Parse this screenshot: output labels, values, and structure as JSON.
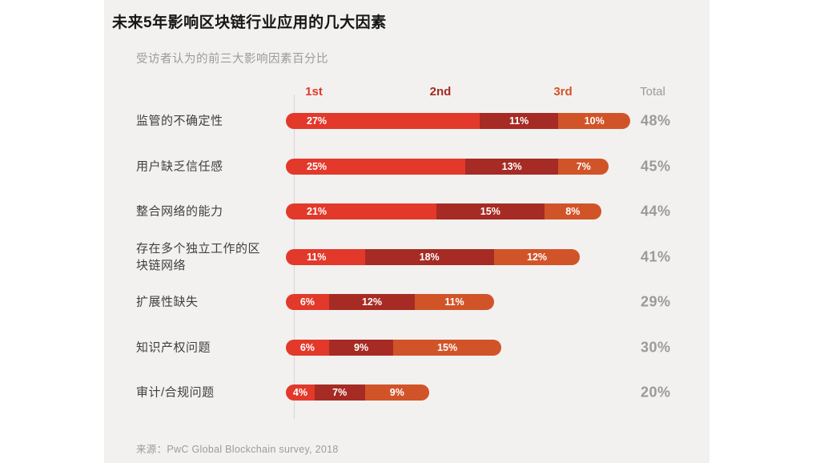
{
  "title": "未来5年影响区块链行业应用的几大因素",
  "subtitle": "受访者认为的前三大影响因素百分比",
  "source": "来源：PwC Global Blockchain survey, 2018",
  "columns": {
    "first": "1st",
    "second": "2nd",
    "third": "3rd",
    "total": "Total"
  },
  "colors": {
    "first": "#E2392B",
    "second": "#A62B24",
    "third": "#D15429",
    "total_text": "#9B9A98",
    "panel_bg": "#F2F1EF",
    "axis_line": "#D8D6D3"
  },
  "chart_data": {
    "type": "bar",
    "stacked": true,
    "orientation": "horizontal",
    "unit": "%",
    "title": "未来5年影响区块链行业应用的几大因素",
    "subtitle": "受访者认为的前三大影响因素百分比",
    "categories": [
      "监管的不确定性",
      "用户缺乏信任感",
      "整合网络的能力",
      "存在多个独立工作的区块链网络",
      "扩展性缺失",
      "知识产权问题",
      "审计/合规问题"
    ],
    "series": [
      {
        "name": "1st",
        "values": [
          27,
          25,
          21,
          11,
          6,
          6,
          4
        ]
      },
      {
        "name": "2nd",
        "values": [
          11,
          13,
          15,
          18,
          12,
          9,
          7
        ]
      },
      {
        "name": "3rd",
        "values": [
          10,
          7,
          8,
          12,
          11,
          15,
          9
        ]
      }
    ],
    "totals": [
      48,
      45,
      44,
      41,
      29,
      30,
      20
    ],
    "xlim": [
      0,
      48
    ],
    "legend_position": "top",
    "grid": false
  }
}
